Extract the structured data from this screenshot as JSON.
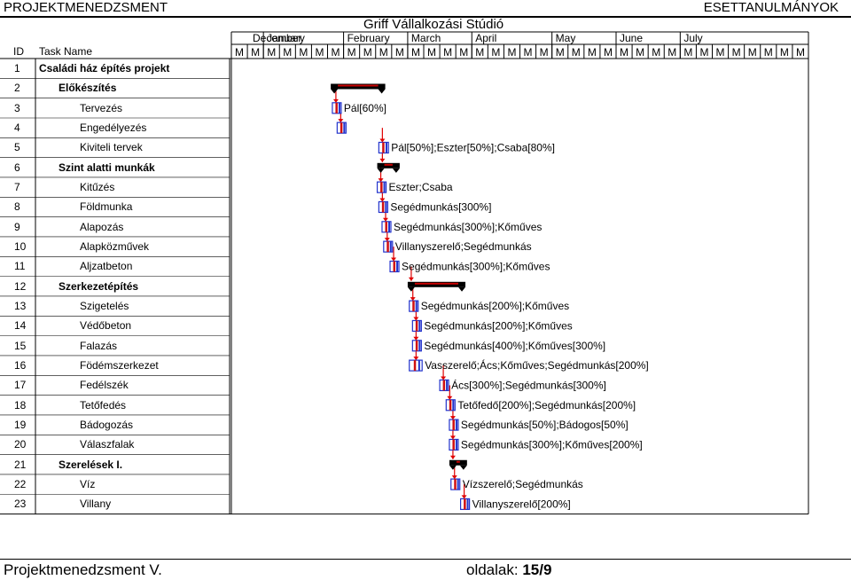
{
  "header": {
    "left": "PROJEKTMENEDZSMENT",
    "right": "ESETTANULMÁNYOK"
  },
  "project_title": "Griff Vállalkozási Stúdió",
  "columns": {
    "id": "ID",
    "task": "Task Name"
  },
  "timescale": {
    "months": [
      "December",
      "January",
      "February",
      "March",
      "April",
      "May",
      "June",
      "July"
    ],
    "week_label": "M",
    "weeks_per_month": [
      2,
      5,
      4,
      4,
      5,
      4,
      4,
      4
    ]
  },
  "tasks": [
    {
      "id": "1",
      "name": "Családi ház építés projekt",
      "level": 0,
      "bold": true
    },
    {
      "id": "2",
      "name": "Előkészítés",
      "level": 1,
      "bold": true
    },
    {
      "id": "3",
      "name": "Tervezés",
      "level": 2,
      "bold": false
    },
    {
      "id": "4",
      "name": "Engedélyezés",
      "level": 2,
      "bold": false
    },
    {
      "id": "5",
      "name": "Kiviteli tervek",
      "level": 2,
      "bold": false
    },
    {
      "id": "6",
      "name": "Szint alatti munkák",
      "level": 1,
      "bold": true
    },
    {
      "id": "7",
      "name": "Kitűzés",
      "level": 2,
      "bold": false
    },
    {
      "id": "8",
      "name": "Földmunka",
      "level": 2,
      "bold": false
    },
    {
      "id": "9",
      "name": "Alapozás",
      "level": 2,
      "bold": false
    },
    {
      "id": "10",
      "name": "Alapközművek",
      "level": 2,
      "bold": false
    },
    {
      "id": "11",
      "name": "Aljzatbeton",
      "level": 2,
      "bold": false
    },
    {
      "id": "12",
      "name": "Szerkezetépítés",
      "level": 1,
      "bold": true
    },
    {
      "id": "13",
      "name": "Szigetelés",
      "level": 2,
      "bold": false
    },
    {
      "id": "14",
      "name": "Védőbeton",
      "level": 2,
      "bold": false
    },
    {
      "id": "15",
      "name": "Falazás",
      "level": 2,
      "bold": false
    },
    {
      "id": "16",
      "name": "Födémszerkezet",
      "level": 2,
      "bold": false
    },
    {
      "id": "17",
      "name": "Fedélszék",
      "level": 2,
      "bold": false
    },
    {
      "id": "18",
      "name": "Tetőfedés",
      "level": 2,
      "bold": false
    },
    {
      "id": "19",
      "name": "Bádogozás",
      "level": 2,
      "bold": false
    },
    {
      "id": "20",
      "name": "Válaszfalak",
      "level": 2,
      "bold": false
    },
    {
      "id": "21",
      "name": "Szerelések I.",
      "level": 1,
      "bold": true
    },
    {
      "id": "22",
      "name": "Víz",
      "level": 2,
      "bold": false
    },
    {
      "id": "23",
      "name": "Villany",
      "level": 2,
      "bold": false
    }
  ],
  "schedule": [
    {
      "row": 1,
      "type": "summary",
      "start": 6.2,
      "end": 9.6
    },
    {
      "row": 2,
      "type": "task",
      "start": 6.3,
      "end": 6.8,
      "resource": "Pál[60%]"
    },
    {
      "row": 3,
      "type": "task",
      "start": 6.6,
      "end": 7.0,
      "resource": ""
    },
    {
      "row": 4,
      "type": "task",
      "start": 9.2,
      "end": 9.8,
      "resource": "Pál[50%];Eszter[50%];Csaba[80%]"
    },
    {
      "row": 5,
      "type": "summary",
      "start": 9.1,
      "end": 10.5
    },
    {
      "row": 6,
      "type": "task",
      "start": 9.1,
      "end": 9.5,
      "resource": "Eszter;Csaba"
    },
    {
      "row": 7,
      "type": "task",
      "start": 9.2,
      "end": 9.7,
      "resource": "Segédmunkás[300%]"
    },
    {
      "row": 8,
      "type": "task",
      "start": 9.4,
      "end": 9.9,
      "resource": "Segédmunkás[300%];Kőműves"
    },
    {
      "row": 9,
      "type": "task",
      "start": 9.5,
      "end": 10.0,
      "resource": "Villanyszerelő;Segédmunkás"
    },
    {
      "row": 10,
      "type": "task",
      "start": 9.9,
      "end": 10.4,
      "resource": "Segédmunkás[300%];Kőműves"
    },
    {
      "row": 11,
      "type": "summary",
      "start": 11.0,
      "end": 14.6
    },
    {
      "row": 12,
      "type": "task",
      "start": 11.1,
      "end": 11.6,
      "resource": "Segédmunkás[200%];Kőműves"
    },
    {
      "row": 13,
      "type": "task",
      "start": 11.3,
      "end": 11.7,
      "resource": "Segédmunkás[200%];Kőműves"
    },
    {
      "row": 14,
      "type": "task",
      "start": 11.3,
      "end": 11.8,
      "resource": "Segédmunkás[400%];Kőműves[300%]"
    },
    {
      "row": 15,
      "type": "task",
      "start": 11.1,
      "end": 11.9,
      "resource": "Vasszerelő;Ács;Kőműves;Segédmunkás[200%]"
    },
    {
      "row": 16,
      "type": "task",
      "start": 13.0,
      "end": 13.5,
      "resource": "Ács[300%];Segédmunkás[300%]"
    },
    {
      "row": 17,
      "type": "task",
      "start": 13.4,
      "end": 13.7,
      "resource": "Tetőfedő[200%];Segédmunkás[200%]"
    },
    {
      "row": 18,
      "type": "task",
      "start": 13.6,
      "end": 13.9,
      "resource": "Segédmunkás[50%];Bádogos[50%]"
    },
    {
      "row": 19,
      "type": "task",
      "start": 13.6,
      "end": 14.0,
      "resource": "Segédmunkás[300%];Kőműves[200%]"
    },
    {
      "row": 20,
      "type": "summary",
      "start": 13.6,
      "end": 14.7
    },
    {
      "row": 21,
      "type": "task",
      "start": 13.7,
      "end": 14.1,
      "resource": "Vízszerelő;Segédmunkás"
    },
    {
      "row": 22,
      "type": "task",
      "start": 14.3,
      "end": 14.7,
      "resource": "Villanyszerelő[200%]"
    }
  ],
  "footer": {
    "left": "Projektmenedzsment V.",
    "page_label": "oldalak:",
    "page_value": "15/9"
  },
  "colors": {
    "summary": "#000000",
    "summary_marker": "#c80000",
    "task_blue": "#2233cc",
    "task_red": "#d01010",
    "link": "#e00000",
    "grid": "#000000"
  }
}
